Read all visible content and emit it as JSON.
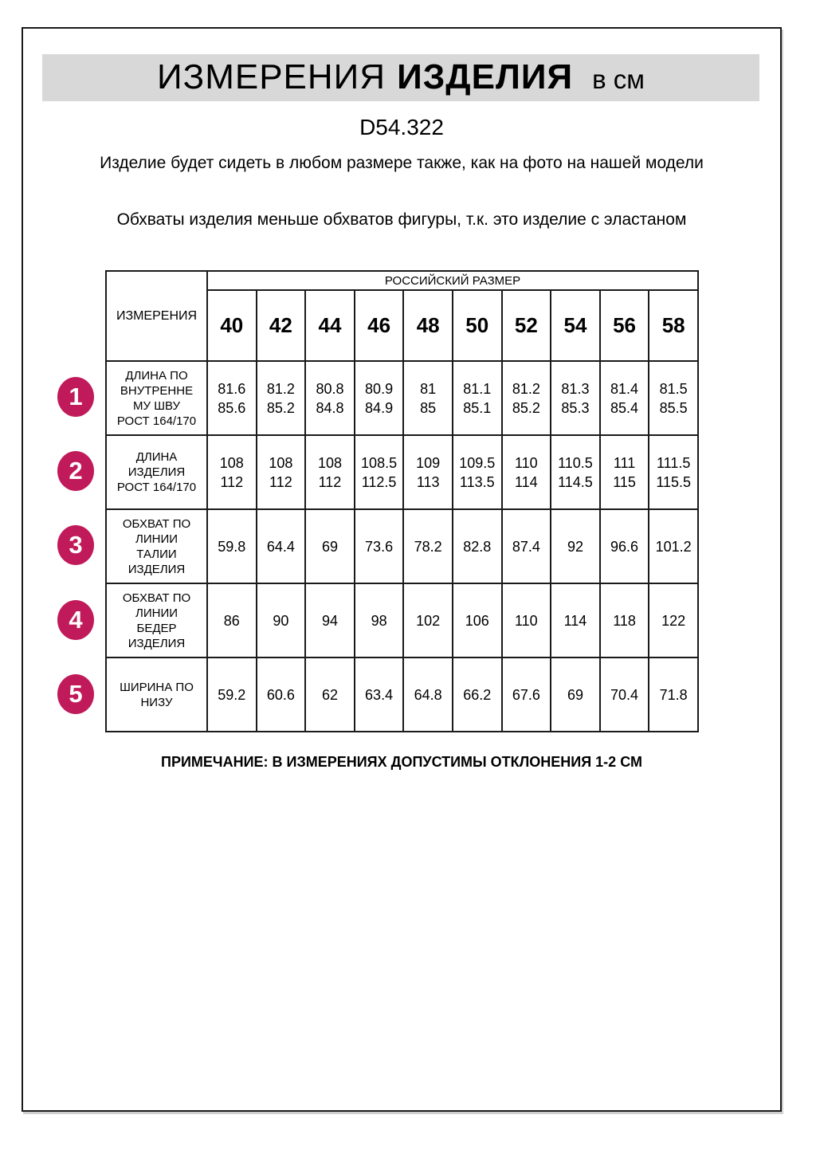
{
  "header": {
    "title_main": "ИЗМЕРЕНИЯ",
    "title_secondary": "ИЗДЕЛИЯ",
    "title_unit": "в см"
  },
  "model_code": "D54.322",
  "intro": {
    "line1": "Изделие будет сидеть в любом размере также, как на фото на нашей модели",
    "line2": "Обхваты изделия меньше обхватов фигуры, т.к. это изделие с эластаном"
  },
  "size_table": {
    "measure_header": "ИЗМЕРЕНИЯ",
    "size_group_header": "РОССИЙСКИЙ РАЗМЕР",
    "sizes": [
      "40",
      "42",
      "44",
      "46",
      "48",
      "50",
      "52",
      "54",
      "56",
      "58"
    ],
    "rows": [
      {
        "num": "1",
        "label": "ДЛИНА ПО\nВНУТРЕННЕ\nМУ ШВУ\nРОСТ 164/170",
        "values": [
          "81.6\n85.6",
          "81.2\n85.2",
          "80.8\n84.8",
          "80.9\n84.9",
          "81\n85",
          "81.1\n85.1",
          "81.2\n85.2",
          "81.3\n85.3",
          "81.4\n85.4",
          "81.5\n85.5"
        ]
      },
      {
        "num": "2",
        "label": "ДЛИНА\nИЗДЕЛИЯ\nРОСТ 164/170",
        "values": [
          "108\n112",
          "108\n112",
          "108\n112",
          "108.5\n112.5",
          "109\n113",
          "109.5\n113.5",
          "110\n114",
          "110.5\n114.5",
          "111\n115",
          "111.5\n115.5"
        ]
      },
      {
        "num": "3",
        "label": "ОБХВАТ ПО\nЛИНИИ\nТАЛИИ\nИЗДЕЛИЯ",
        "values": [
          "59.8",
          "64.4",
          "69",
          "73.6",
          "78.2",
          "82.8",
          "87.4",
          "92",
          "96.6",
          "101.2"
        ]
      },
      {
        "num": "4",
        "label": "ОБХВАТ ПО\nЛИНИИ\nБЕДЕР\nИЗДЕЛИЯ",
        "values": [
          "86",
          "90",
          "94",
          "98",
          "102",
          "106",
          "110",
          "114",
          "118",
          "122"
        ]
      },
      {
        "num": "5",
        "label": "ШИРИНА ПО\nНИЗУ",
        "values": [
          "59.2",
          "60.6",
          "62",
          "63.4",
          "64.8",
          "66.2",
          "67.6",
          "69",
          "70.4",
          "71.8"
        ]
      }
    ]
  },
  "note": "ПРИМЕЧАНИЕ: В ИЗМЕРЕНИЯХ ДОПУСТИМЫ ОТКЛОНЕНИЯ 1-2 СМ",
  "colors": {
    "badge": "#c11a5a",
    "title_bar_bg": "#d8d8d8"
  }
}
